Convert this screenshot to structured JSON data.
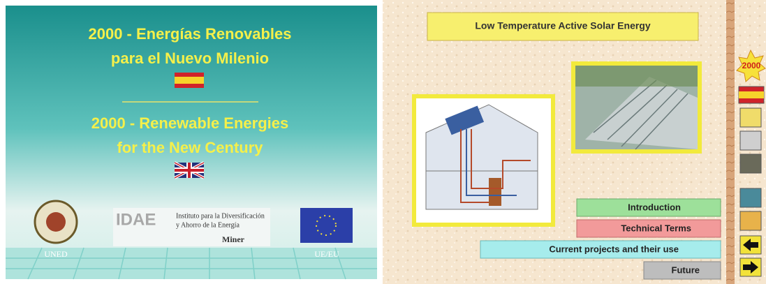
{
  "intro_screen": {
    "title_es": [
      "2000 - Energías Renovables",
      "para el Nuevo Milenio"
    ],
    "title_en": [
      "2000 - Renewable Energies",
      "for the New Century"
    ],
    "logos": {
      "uned": "UNED",
      "idae": "IDAE",
      "idae_name": [
        "Instituto para la Diversificación",
        "y Ahorro de la Energía"
      ],
      "miner": "Miner",
      "eu": "UE/EU"
    }
  },
  "module_screen": {
    "title": "Low Temperature Active Solar Energy",
    "badge": "2000",
    "menu": [
      "Introduction",
      "Technical Terms",
      "Current projects and their use",
      "Future"
    ]
  }
}
